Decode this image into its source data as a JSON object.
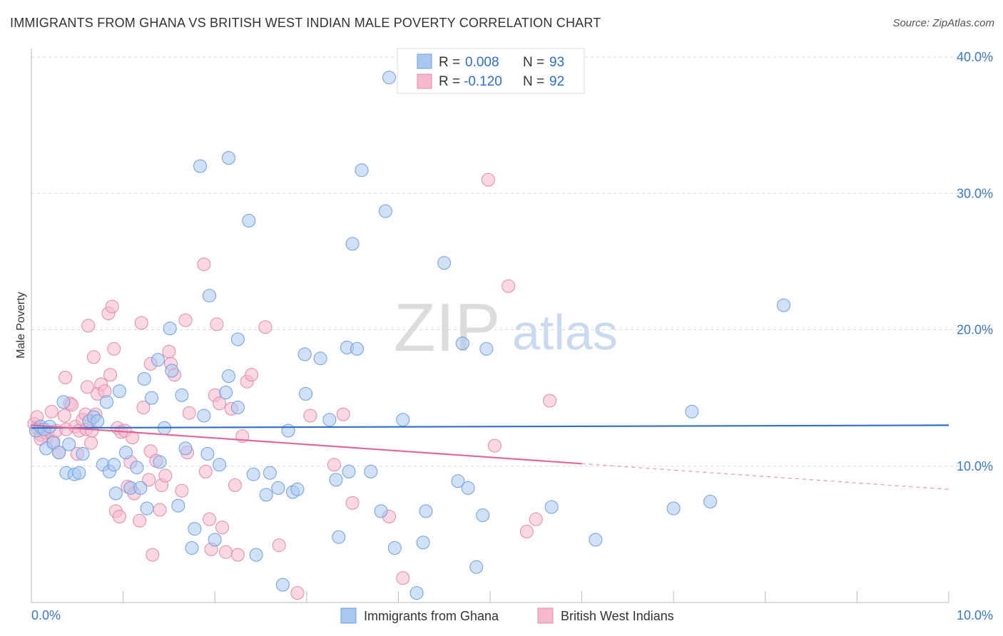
{
  "title": "IMMIGRANTS FROM GHANA VS BRITISH WEST INDIAN MALE POVERTY CORRELATION CHART",
  "source": "Source: ZipAtlas.com",
  "watermark": {
    "zip": "ZIP",
    "atlas": "atlas"
  },
  "legend_stats": [
    {
      "r_label": "R =",
      "r_value": "0.008",
      "n_label": "N =",
      "n_value": "93"
    },
    {
      "r_label": "R =",
      "r_value": "-0.120",
      "n_label": "N =",
      "n_value": "92"
    }
  ],
  "colors": {
    "blue_fill": "#a9c8f0",
    "blue_stroke": "#6f9ee0",
    "blue_line": "#2f6ec9",
    "pink_fill": "#f5b8cc",
    "pink_stroke": "#e58aa8",
    "pink_line": "#e0679a",
    "axis_label": "#3a78c9",
    "grid": "#d9d9d9"
  },
  "chart_data": {
    "type": "scatter",
    "title": "IMMIGRANTS FROM GHANA VS BRITISH WEST INDIAN MALE POVERTY CORRELATION CHART",
    "xlabel": "",
    "ylabel": "Male Poverty",
    "xlim": [
      0,
      10
    ],
    "ylim": [
      0,
      40
    ],
    "x_tick_labels": [
      "0.0%",
      "10.0%"
    ],
    "y_ticks": [
      10,
      20,
      30,
      40
    ],
    "y_tick_labels": [
      "10.0%",
      "20.0%",
      "30.0%",
      "40.0%"
    ],
    "grid": true,
    "legend_position": "bottom",
    "series": [
      {
        "name": "Immigrants from Ghana",
        "color": "#a9c8f0",
        "trend": {
          "x0": 0,
          "y0": 12.8,
          "x1": 10,
          "y1": 13.0,
          "solid_until": 10
        },
        "points": [
          [
            0.05,
            12.6
          ],
          [
            0.1,
            12.9
          ],
          [
            0.14,
            12.7
          ],
          [
            0.16,
            11.3
          ],
          [
            0.2,
            12.9
          ],
          [
            0.24,
            11.7
          ],
          [
            0.3,
            11.0
          ],
          [
            0.35,
            14.7
          ],
          [
            0.38,
            9.5
          ],
          [
            0.41,
            11.6
          ],
          [
            0.47,
            9.4
          ],
          [
            0.52,
            9.5
          ],
          [
            0.56,
            10.9
          ],
          [
            0.63,
            13.3
          ],
          [
            0.68,
            13.6
          ],
          [
            0.72,
            13.3
          ],
          [
            0.78,
            10.1
          ],
          [
            0.82,
            14.7
          ],
          [
            0.85,
            9.6
          ],
          [
            0.9,
            10.1
          ],
          [
            0.92,
            8.0
          ],
          [
            0.96,
            15.5
          ],
          [
            1.03,
            11.0
          ],
          [
            1.08,
            8.4
          ],
          [
            1.15,
            9.9
          ],
          [
            1.19,
            8.4
          ],
          [
            1.23,
            16.4
          ],
          [
            1.26,
            6.9
          ],
          [
            1.31,
            15.0
          ],
          [
            1.38,
            17.8
          ],
          [
            1.4,
            10.3
          ],
          [
            1.45,
            12.8
          ],
          [
            1.51,
            20.1
          ],
          [
            1.53,
            17.0
          ],
          [
            1.6,
            7.1
          ],
          [
            1.64,
            15.2
          ],
          [
            1.68,
            11.3
          ],
          [
            1.75,
            4.0
          ],
          [
            1.78,
            5.4
          ],
          [
            1.84,
            32.0
          ],
          [
            1.88,
            13.7
          ],
          [
            1.92,
            10.9
          ],
          [
            1.94,
            22.5
          ],
          [
            2.0,
            4.6
          ],
          [
            2.05,
            10.1
          ],
          [
            2.12,
            15.4
          ],
          [
            2.15,
            16.6
          ],
          [
            2.15,
            32.6
          ],
          [
            2.25,
            14.3
          ],
          [
            2.25,
            19.3
          ],
          [
            2.37,
            28.0
          ],
          [
            2.42,
            9.4
          ],
          [
            2.45,
            3.5
          ],
          [
            2.56,
            7.9
          ],
          [
            2.6,
            9.5
          ],
          [
            2.69,
            8.4
          ],
          [
            2.74,
            1.3
          ],
          [
            2.8,
            12.6
          ],
          [
            2.85,
            8.1
          ],
          [
            2.9,
            8.3
          ],
          [
            2.98,
            18.2
          ],
          [
            2.99,
            15.3
          ],
          [
            3.15,
            17.9
          ],
          [
            3.25,
            13.4
          ],
          [
            3.32,
            9.0
          ],
          [
            3.35,
            4.8
          ],
          [
            3.44,
            18.7
          ],
          [
            3.46,
            9.6
          ],
          [
            3.5,
            26.3
          ],
          [
            3.55,
            18.6
          ],
          [
            3.6,
            31.7
          ],
          [
            3.7,
            9.6
          ],
          [
            3.81,
            6.7
          ],
          [
            3.86,
            28.7
          ],
          [
            3.9,
            38.5
          ],
          [
            3.96,
            4.0
          ],
          [
            4.05,
            13.4
          ],
          [
            4.2,
            0.7
          ],
          [
            4.27,
            4.4
          ],
          [
            4.3,
            6.7
          ],
          [
            4.5,
            24.9
          ],
          [
            4.65,
            8.9
          ],
          [
            4.7,
            19.0
          ],
          [
            4.76,
            8.4
          ],
          [
            4.85,
            2.6
          ],
          [
            4.92,
            6.4
          ],
          [
            4.96,
            18.6
          ],
          [
            5.67,
            7.0
          ],
          [
            6.15,
            4.6
          ],
          [
            7.0,
            6.9
          ],
          [
            7.2,
            14.0
          ],
          [
            7.4,
            7.4
          ],
          [
            8.2,
            21.8
          ]
        ]
      },
      {
        "name": "British West Indians",
        "color": "#f5b8cc",
        "trend": {
          "x0": 0,
          "y0": 13.0,
          "x1": 10,
          "y1": 8.3,
          "solid_until": 6.0
        },
        "points": [
          [
            0.03,
            13.1
          ],
          [
            0.06,
            12.8
          ],
          [
            0.1,
            12.3
          ],
          [
            0.14,
            12.5
          ],
          [
            0.18,
            12.2
          ],
          [
            0.22,
            14.0
          ],
          [
            0.24,
            11.8
          ],
          [
            0.27,
            12.6
          ],
          [
            0.3,
            11.0
          ],
          [
            0.36,
            13.7
          ],
          [
            0.37,
            16.5
          ],
          [
            0.38,
            12.7
          ],
          [
            0.42,
            14.6
          ],
          [
            0.44,
            14.5
          ],
          [
            0.48,
            12.9
          ],
          [
            0.5,
            10.9
          ],
          [
            0.52,
            12.6
          ],
          [
            0.56,
            13.4
          ],
          [
            0.59,
            13.8
          ],
          [
            0.61,
            15.8
          ],
          [
            0.6,
            12.7
          ],
          [
            0.62,
            20.3
          ],
          [
            0.65,
            11.7
          ],
          [
            0.66,
            12.6
          ],
          [
            0.68,
            18.0
          ],
          [
            0.7,
            13.8
          ],
          [
            0.72,
            15.3
          ],
          [
            0.76,
            16.0
          ],
          [
            0.8,
            15.5
          ],
          [
            0.84,
            21.2
          ],
          [
            0.86,
            16.7
          ],
          [
            0.88,
            21.7
          ],
          [
            0.9,
            18.6
          ],
          [
            0.92,
            6.7
          ],
          [
            0.94,
            12.8
          ],
          [
            0.96,
            6.3
          ],
          [
            0.98,
            12.5
          ],
          [
            1.02,
            12.6
          ],
          [
            1.05,
            8.5
          ],
          [
            1.08,
            10.3
          ],
          [
            1.1,
            12.1
          ],
          [
            1.12,
            8.0
          ],
          [
            1.18,
            6.0
          ],
          [
            1.2,
            20.5
          ],
          [
            1.22,
            14.3
          ],
          [
            1.28,
            9.0
          ],
          [
            1.3,
            17.5
          ],
          [
            1.3,
            11.1
          ],
          [
            1.32,
            3.5
          ],
          [
            1.36,
            10.4
          ],
          [
            1.4,
            6.8
          ],
          [
            1.42,
            8.6
          ],
          [
            1.46,
            9.3
          ],
          [
            1.5,
            18.4
          ],
          [
            1.52,
            17.5
          ],
          [
            1.56,
            16.7
          ],
          [
            1.64,
            8.2
          ],
          [
            1.68,
            20.7
          ],
          [
            1.7,
            11.0
          ],
          [
            1.72,
            13.9
          ],
          [
            1.88,
            24.8
          ],
          [
            1.9,
            9.6
          ],
          [
            1.94,
            6.1
          ],
          [
            1.96,
            3.9
          ],
          [
            2.0,
            15.2
          ],
          [
            2.02,
            20.4
          ],
          [
            2.05,
            14.6
          ],
          [
            2.08,
            5.5
          ],
          [
            2.12,
            3.7
          ],
          [
            2.18,
            14.2
          ],
          [
            2.22,
            8.6
          ],
          [
            2.25,
            3.5
          ],
          [
            2.3,
            12.2
          ],
          [
            2.35,
            16.2
          ],
          [
            2.4,
            16.7
          ],
          [
            2.55,
            20.2
          ],
          [
            2.7,
            4.2
          ],
          [
            2.9,
            0.7
          ],
          [
            3.04,
            13.7
          ],
          [
            3.3,
            10.1
          ],
          [
            3.4,
            13.8
          ],
          [
            3.5,
            7.3
          ],
          [
            3.9,
            6.3
          ],
          [
            4.05,
            1.8
          ],
          [
            4.98,
            31.0
          ],
          [
            5.05,
            11.5
          ],
          [
            5.2,
            23.2
          ],
          [
            5.4,
            5.2
          ],
          [
            5.5,
            6.1
          ],
          [
            5.65,
            14.8
          ],
          [
            0.06,
            13.6
          ],
          [
            0.1,
            12.0
          ]
        ]
      }
    ]
  }
}
